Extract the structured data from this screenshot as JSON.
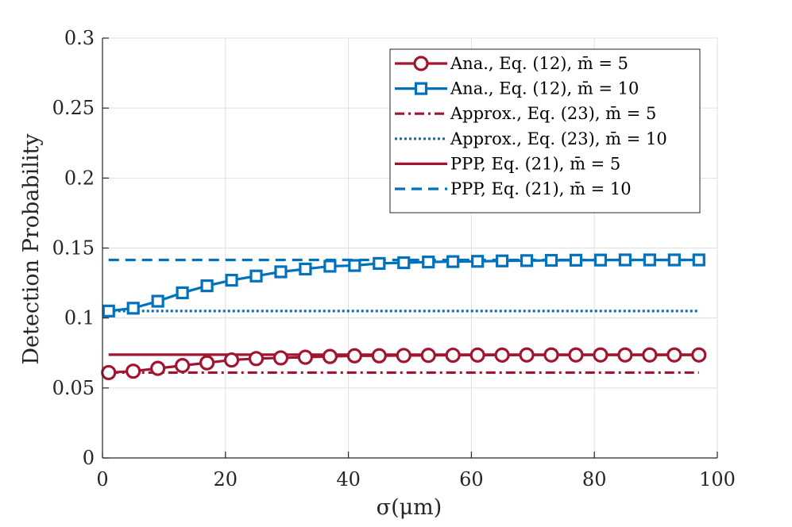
{
  "chart_data": {
    "type": "line",
    "title": "",
    "xlabel": "σ(μm)",
    "ylabel": "Detection Probability",
    "xlim": [
      0,
      100
    ],
    "ylim": [
      0,
      0.3
    ],
    "grid": true,
    "legend_position": "top-right",
    "xticks": [
      0,
      20,
      40,
      60,
      80,
      100
    ],
    "xtick_labels": [
      "0",
      "20",
      "40",
      "60",
      "80",
      "100"
    ],
    "yticks": [
      0,
      0.05,
      0.1,
      0.15,
      0.2,
      0.25,
      0.3
    ],
    "ytick_labels": [
      "0",
      "0.05",
      "0.1",
      "0.15",
      "0.2",
      "0.25",
      "0.3"
    ],
    "series": [
      {
        "name": "Ana., Eq. (12), m̄ = 5",
        "color": "#A2142F",
        "line_style": "solid",
        "marker": "circle",
        "x": [
          1,
          5,
          9,
          13,
          17,
          21,
          25,
          29,
          33,
          37,
          41,
          45,
          49,
          53,
          57,
          61,
          65,
          69,
          73,
          77,
          81,
          85,
          89,
          93,
          97
        ],
        "y": [
          0.061,
          0.062,
          0.064,
          0.066,
          0.068,
          0.07,
          0.071,
          0.0715,
          0.072,
          0.0725,
          0.073,
          0.073,
          0.0732,
          0.0733,
          0.0734,
          0.0735,
          0.0735,
          0.0736,
          0.0736,
          0.0736,
          0.0736,
          0.0736,
          0.0736,
          0.0736,
          0.0736
        ]
      },
      {
        "name": "Ana., Eq. (12), m̄ = 10",
        "color": "#0072BD",
        "line_style": "solid",
        "marker": "square",
        "x": [
          1,
          5,
          9,
          13,
          17,
          21,
          25,
          29,
          33,
          37,
          41,
          45,
          49,
          53,
          57,
          61,
          65,
          69,
          73,
          77,
          81,
          85,
          89,
          93,
          97
        ],
        "y": [
          0.105,
          0.107,
          0.112,
          0.118,
          0.123,
          0.127,
          0.13,
          0.133,
          0.135,
          0.137,
          0.1375,
          0.139,
          0.1395,
          0.14,
          0.1403,
          0.1405,
          0.1408,
          0.141,
          0.1412,
          0.1413,
          0.1414,
          0.1415,
          0.1415,
          0.1415,
          0.1415
        ]
      },
      {
        "name": "Approx., Eq. (23), m̄ = 5",
        "color": "#A2142F",
        "line_style": "dashdot",
        "marker": "none",
        "x": [
          1,
          97
        ],
        "y": [
          0.061,
          0.061
        ]
      },
      {
        "name": "Approx., Eq. (23), m̄ = 10",
        "color": "#0072BD",
        "line_style": "dotted",
        "marker": "none",
        "x": [
          1,
          97
        ],
        "y": [
          0.105,
          0.105
        ]
      },
      {
        "name": "PPP, Eq. (21), m̄ = 5",
        "color": "#A2142F",
        "line_style": "solid",
        "marker": "none",
        "x": [
          1,
          97
        ],
        "y": [
          0.0738,
          0.0738
        ]
      },
      {
        "name": "PPP, Eq. (21), m̄ = 10",
        "color": "#0072BD",
        "line_style": "dashed",
        "marker": "none",
        "x": [
          1,
          97
        ],
        "y": [
          0.1415,
          0.1415
        ]
      }
    ]
  }
}
